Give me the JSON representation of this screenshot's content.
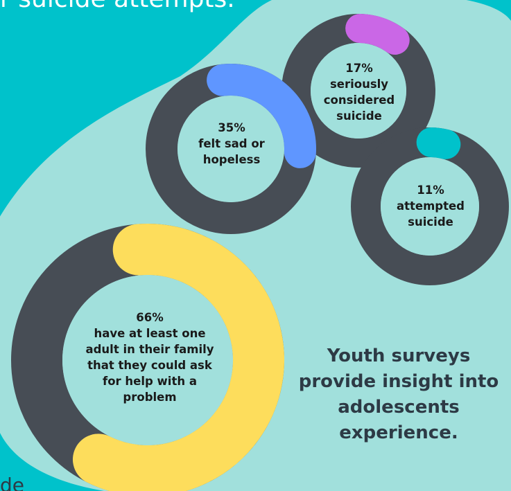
{
  "header_fragment": "r suicide attempts.",
  "footer_fragment": "de",
  "tagline": [
    "Youth surveys",
    "provide insight into",
    "adolescents",
    "experience."
  ],
  "colors": {
    "background": "#00c2cb",
    "blob": "#a1e0dc",
    "ring": "#474d55",
    "sad": "#5f96ff",
    "considered": "#ca67e6",
    "attempted": "#00c2cb",
    "family": "#fddd5c"
  },
  "chart_data": [
    {
      "type": "pie",
      "name": "sad",
      "value": 35,
      "unit": "%",
      "lines": [
        "35%",
        "felt sad or",
        "hopeless"
      ]
    },
    {
      "type": "pie",
      "name": "considered",
      "value": 17,
      "unit": "%",
      "lines": [
        "17%",
        "seriously",
        "considered",
        "suicide"
      ]
    },
    {
      "type": "pie",
      "name": "attempted",
      "value": 11,
      "unit": "%",
      "lines": [
        "11%",
        "attempted",
        "suicide"
      ]
    },
    {
      "type": "pie",
      "name": "family",
      "value": 66,
      "unit": "%",
      "lines": [
        "66%",
        "have at least one",
        "adult in their family",
        "that they could ask",
        "for help with a",
        "problem"
      ]
    }
  ]
}
